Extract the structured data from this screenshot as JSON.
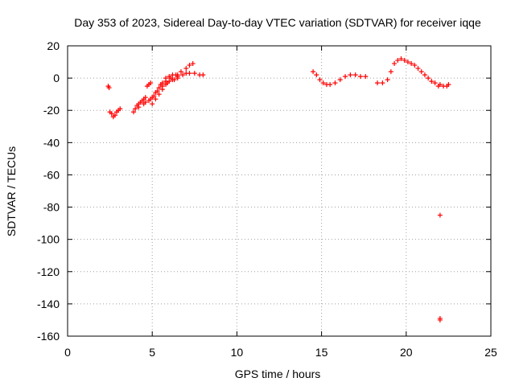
{
  "chart_data": {
    "type": "scatter",
    "title": "Day 353 of 2023, Sidereal Day-to-day VTEC variation (SDTVAR) for receiver iqqe",
    "xlabel": "GPS time / hours",
    "ylabel": "SDTVAR / TECUs",
    "xlim": [
      0,
      25
    ],
    "ylim": [
      -160,
      20
    ],
    "xticks": [
      0,
      5,
      10,
      15,
      20,
      25
    ],
    "yticks": [
      -160,
      -140,
      -120,
      -100,
      -80,
      -60,
      -40,
      -20,
      0,
      20
    ],
    "xtick_labels": [
      "0",
      "5",
      "10",
      "15",
      "20",
      "25"
    ],
    "ytick_labels": [
      "-160",
      "-140",
      "-120",
      "-100",
      "-80",
      "-60",
      "-40",
      "-20",
      "0",
      "20"
    ],
    "grid": true,
    "marker": "plus",
    "color": "#ff0000",
    "series": [
      {
        "name": "p1",
        "x": [
          2.4,
          2.45
        ],
        "y": [
          -5,
          -6
        ]
      },
      {
        "name": "p2",
        "x": [
          2.5,
          2.6,
          2.7,
          2.8,
          2.9,
          3.0,
          3.1
        ],
        "y": [
          -21,
          -22,
          -24,
          -23,
          -21,
          -20,
          -19
        ]
      },
      {
        "name": "p3",
        "x": [
          3.9,
          4.0,
          4.1,
          4.2,
          4.3,
          4.4,
          4.5,
          4.6
        ],
        "y": [
          -21,
          -19,
          -17,
          -16,
          -15,
          -14,
          -13,
          -12
        ]
      },
      {
        "name": "p4",
        "x": [
          4.7,
          4.8,
          4.9
        ],
        "y": [
          -5,
          -4,
          -3
        ]
      },
      {
        "name": "p5",
        "x": [
          4.2,
          4.5,
          4.8,
          5.0,
          5.2,
          5.4,
          5.6,
          5.8,
          6.0,
          6.2,
          6.5
        ],
        "y": [
          -18,
          -16,
          -14,
          -12,
          -9,
          -6,
          -3,
          0,
          1,
          2,
          2
        ]
      },
      {
        "name": "p6",
        "x": [
          4.6,
          4.9,
          5.1,
          5.3,
          5.6,
          5.9,
          6.2,
          6.5
        ],
        "y": [
          -15,
          -13,
          -11,
          -8,
          -5,
          -3,
          -1,
          0
        ]
      },
      {
        "name": "p7",
        "x": [
          5.0,
          5.2,
          5.4,
          5.6,
          5.8,
          6.0,
          6.3
        ],
        "y": [
          -16,
          -13,
          -10,
          -7,
          -4,
          -2,
          -1
        ]
      },
      {
        "name": "p8",
        "x": [
          5.5,
          5.8,
          6.1,
          6.4,
          6.7,
          7.0,
          7.2,
          7.4
        ],
        "y": [
          -4,
          -2,
          0,
          2,
          4,
          6,
          8,
          9
        ]
      },
      {
        "name": "p9",
        "x": [
          6.5,
          6.8,
          7.0,
          7.2,
          7.5,
          7.8,
          8.0
        ],
        "y": [
          1,
          2,
          3,
          3,
          3,
          2,
          2
        ]
      },
      {
        "name": "p10",
        "x": [
          14.5,
          14.7,
          14.9,
          15.1,
          15.3,
          15.5,
          15.8,
          16.1,
          16.4,
          16.7,
          17.0,
          17.3,
          17.6
        ],
        "y": [
          4,
          2,
          -1,
          -3,
          -4,
          -4,
          -3,
          -1,
          1,
          2,
          2,
          1,
          1
        ]
      },
      {
        "name": "p11",
        "x": [
          18.3,
          18.6,
          18.9,
          19.1,
          19.3,
          19.5,
          19.7,
          19.9,
          20.1,
          20.3,
          20.5,
          20.7,
          20.9,
          21.1,
          21.3,
          21.5,
          21.7,
          21.9
        ],
        "y": [
          -3,
          -3,
          -1,
          4,
          9,
          11,
          12,
          11,
          10,
          9,
          8,
          6,
          4,
          2,
          0,
          -2,
          -3,
          -5
        ]
      },
      {
        "name": "p12",
        "x": [
          22.0,
          22.2,
          22.4,
          22.5
        ],
        "y": [
          -4,
          -5,
          -5,
          -4
        ]
      },
      {
        "name": "p13",
        "x": [
          22.0
        ],
        "y": [
          -85
        ]
      },
      {
        "name": "p14",
        "x": [
          22.0,
          22.0
        ],
        "y": [
          -149,
          -150
        ]
      }
    ]
  }
}
